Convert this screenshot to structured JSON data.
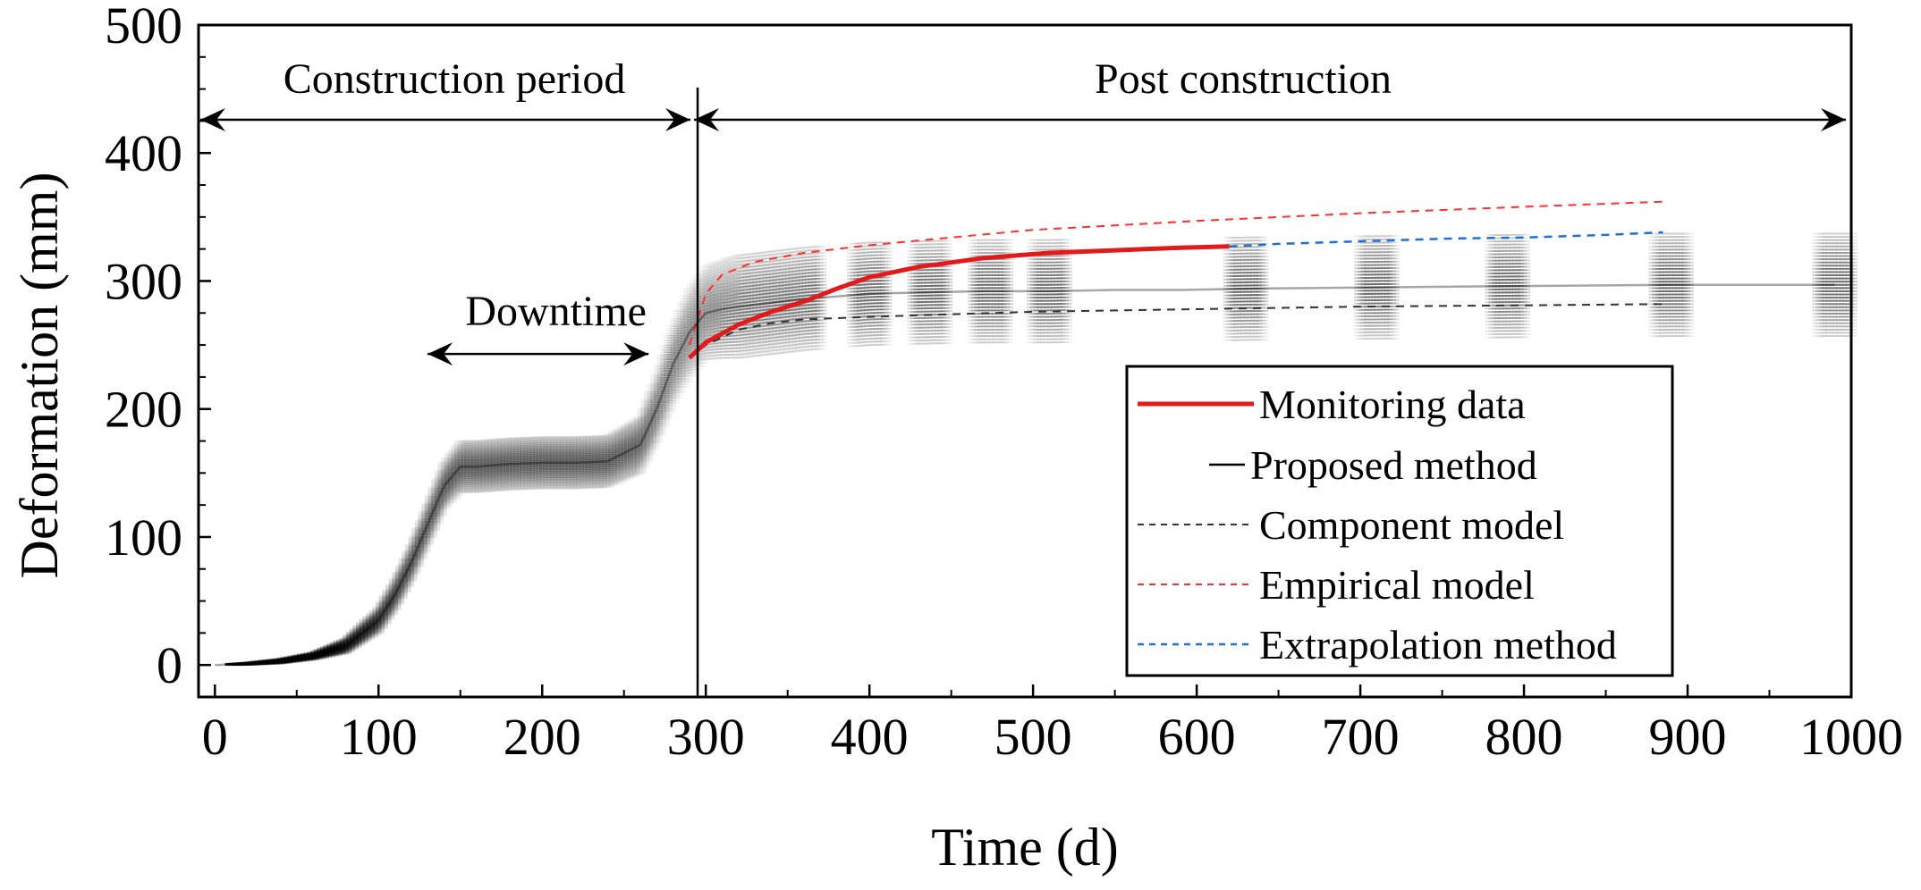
{
  "chart_data": {
    "type": "line",
    "title": "",
    "xlabel": "Time (d)",
    "ylabel": "Deformation (mm)",
    "xlim": [
      -10,
      1000
    ],
    "ylim": [
      -25,
      500
    ],
    "x_ticks": [
      0,
      100,
      200,
      300,
      400,
      500,
      600,
      700,
      800,
      900,
      1000
    ],
    "y_ticks": [
      0,
      100,
      200,
      300,
      400,
      500
    ],
    "x_tick_labels": [
      "0",
      "100",
      "200",
      "300",
      "400",
      "500",
      "600",
      "700",
      "800",
      "900",
      "1000"
    ],
    "y_tick_labels": [
      "0",
      "100",
      "200",
      "300",
      "400",
      "500"
    ],
    "annotations": {
      "construction": "Construction period",
      "post": "Post construction",
      "downtime": "Downtime",
      "construction_range": [
        -10,
        295
      ],
      "post_range": [
        295,
        1000
      ],
      "downtime_range": [
        130,
        265
      ],
      "divider_x": 295
    },
    "legend": {
      "position": "lower-right",
      "entries": [
        {
          "label": "Monitoring data",
          "color": "#e31a1c",
          "style": "solid"
        },
        {
          "label": "Proposed method",
          "color": "#000000",
          "style": "solid"
        },
        {
          "label": "Component model",
          "color": "#333333",
          "style": "dashed"
        },
        {
          "label": "Empirical model",
          "color": "#ff3030",
          "style": "dashed"
        },
        {
          "label": "Extrapolation method",
          "color": "#1f6fd6",
          "style": "dashed"
        }
      ]
    },
    "series": [
      {
        "name": "Monitoring data",
        "color": "#e31a1c",
        "x": [
          290,
          300,
          320,
          340,
          360,
          380,
          400,
          430,
          470,
          510,
          550,
          590,
          620
        ],
        "y": [
          240,
          252,
          266,
          276,
          284,
          294,
          303,
          311,
          318,
          322,
          324,
          326,
          327
        ]
      },
      {
        "name": "Proposed method",
        "color": "#000000",
        "x": [
          0,
          20,
          40,
          60,
          80,
          100,
          110,
          120,
          130,
          140,
          150,
          160,
          180,
          200,
          220,
          240,
          260,
          270,
          280,
          290,
          300,
          310,
          320,
          340,
          360,
          380,
          400,
          430,
          470,
          510,
          550,
          590,
          630,
          710,
          790,
          890,
          990
        ],
        "y": [
          0,
          1,
          3,
          7,
          15,
          35,
          55,
          80,
          110,
          140,
          155,
          155,
          157,
          158,
          158,
          159,
          172,
          200,
          235,
          260,
          275,
          278,
          280,
          283,
          286,
          288,
          290,
          291,
          292,
          292,
          293,
          293,
          294,
          295,
          296,
          297,
          297
        ],
        "band_halfwidth": [
          0,
          1,
          2,
          3,
          6,
          10,
          12,
          14,
          16,
          18,
          20,
          20,
          20,
          20,
          20,
          20,
          22,
          26,
          30,
          34,
          36,
          38,
          40,
          40,
          40,
          40,
          40,
          40,
          40,
          40,
          40,
          40,
          40,
          40,
          40,
          40,
          40
        ]
      },
      {
        "name": "Component model",
        "color": "#333333",
        "x": [
          290,
          300,
          320,
          340,
          360,
          380,
          400,
          450,
          500,
          600,
          700,
          800,
          885
        ],
        "y": [
          240,
          250,
          262,
          267,
          270,
          271,
          272,
          274,
          276,
          278,
          280,
          281,
          282
        ]
      },
      {
        "name": "Empirical model",
        "color": "#ff3030",
        "x": [
          290,
          300,
          310,
          330,
          360,
          400,
          450,
          500,
          600,
          700,
          800,
          885
        ],
        "y": [
          250,
          290,
          305,
          315,
          322,
          328,
          334,
          340,
          347,
          353,
          358,
          362
        ]
      },
      {
        "name": "Extrapolation method",
        "color": "#1f6fd6",
        "x": [
          620,
          650,
          700,
          750,
          800,
          850,
          885
        ],
        "y": [
          327,
          329,
          331,
          333,
          334,
          336,
          338
        ]
      }
    ]
  }
}
